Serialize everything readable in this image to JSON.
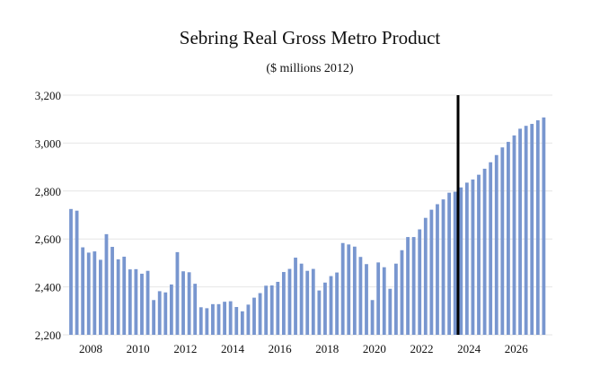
{
  "chart_data": {
    "type": "bar",
    "title": "Sebring Real Gross Metro Product",
    "subtitle": "($ millions 2012)",
    "xlabel": "",
    "ylabel": "",
    "ylim": [
      2200,
      3200
    ],
    "yticks": [
      2200,
      2400,
      2600,
      2800,
      3000,
      3200
    ],
    "ytick_labels": [
      "2,200",
      "2,400",
      "2,600",
      "2,800",
      "3,000",
      "3,200"
    ],
    "xtick_labels": [
      "2008",
      "2010",
      "2012",
      "2014",
      "2016",
      "2018",
      "2020",
      "2022",
      "2024",
      "2026"
    ],
    "grid": true,
    "bar_color": "#7896CF",
    "forecast_line_color": "#000000",
    "forecast_start": "2023Q3",
    "categories_start": "2007Q1",
    "frequency": "quarterly",
    "values": [
      2725,
      2718,
      2565,
      2543,
      2548,
      2513,
      2620,
      2567,
      2515,
      2526,
      2473,
      2474,
      2455,
      2467,
      2345,
      2382,
      2377,
      2410,
      2545,
      2465,
      2461,
      2413,
      2315,
      2311,
      2328,
      2328,
      2338,
      2340,
      2316,
      2298,
      2326,
      2355,
      2374,
      2405,
      2406,
      2421,
      2462,
      2475,
      2522,
      2497,
      2467,
      2475,
      2385,
      2418,
      2445,
      2460,
      2583,
      2577,
      2568,
      2525,
      2495,
      2345,
      2502,
      2482,
      2392,
      2497,
      2553,
      2608,
      2608,
      2640,
      2688,
      2722,
      2745,
      2765,
      2793,
      2797,
      2815,
      2835,
      2848,
      2868,
      2893,
      2920,
      2950,
      2982,
      3005,
      3032,
      3060,
      3072,
      3080,
      3095,
      3107
    ]
  }
}
